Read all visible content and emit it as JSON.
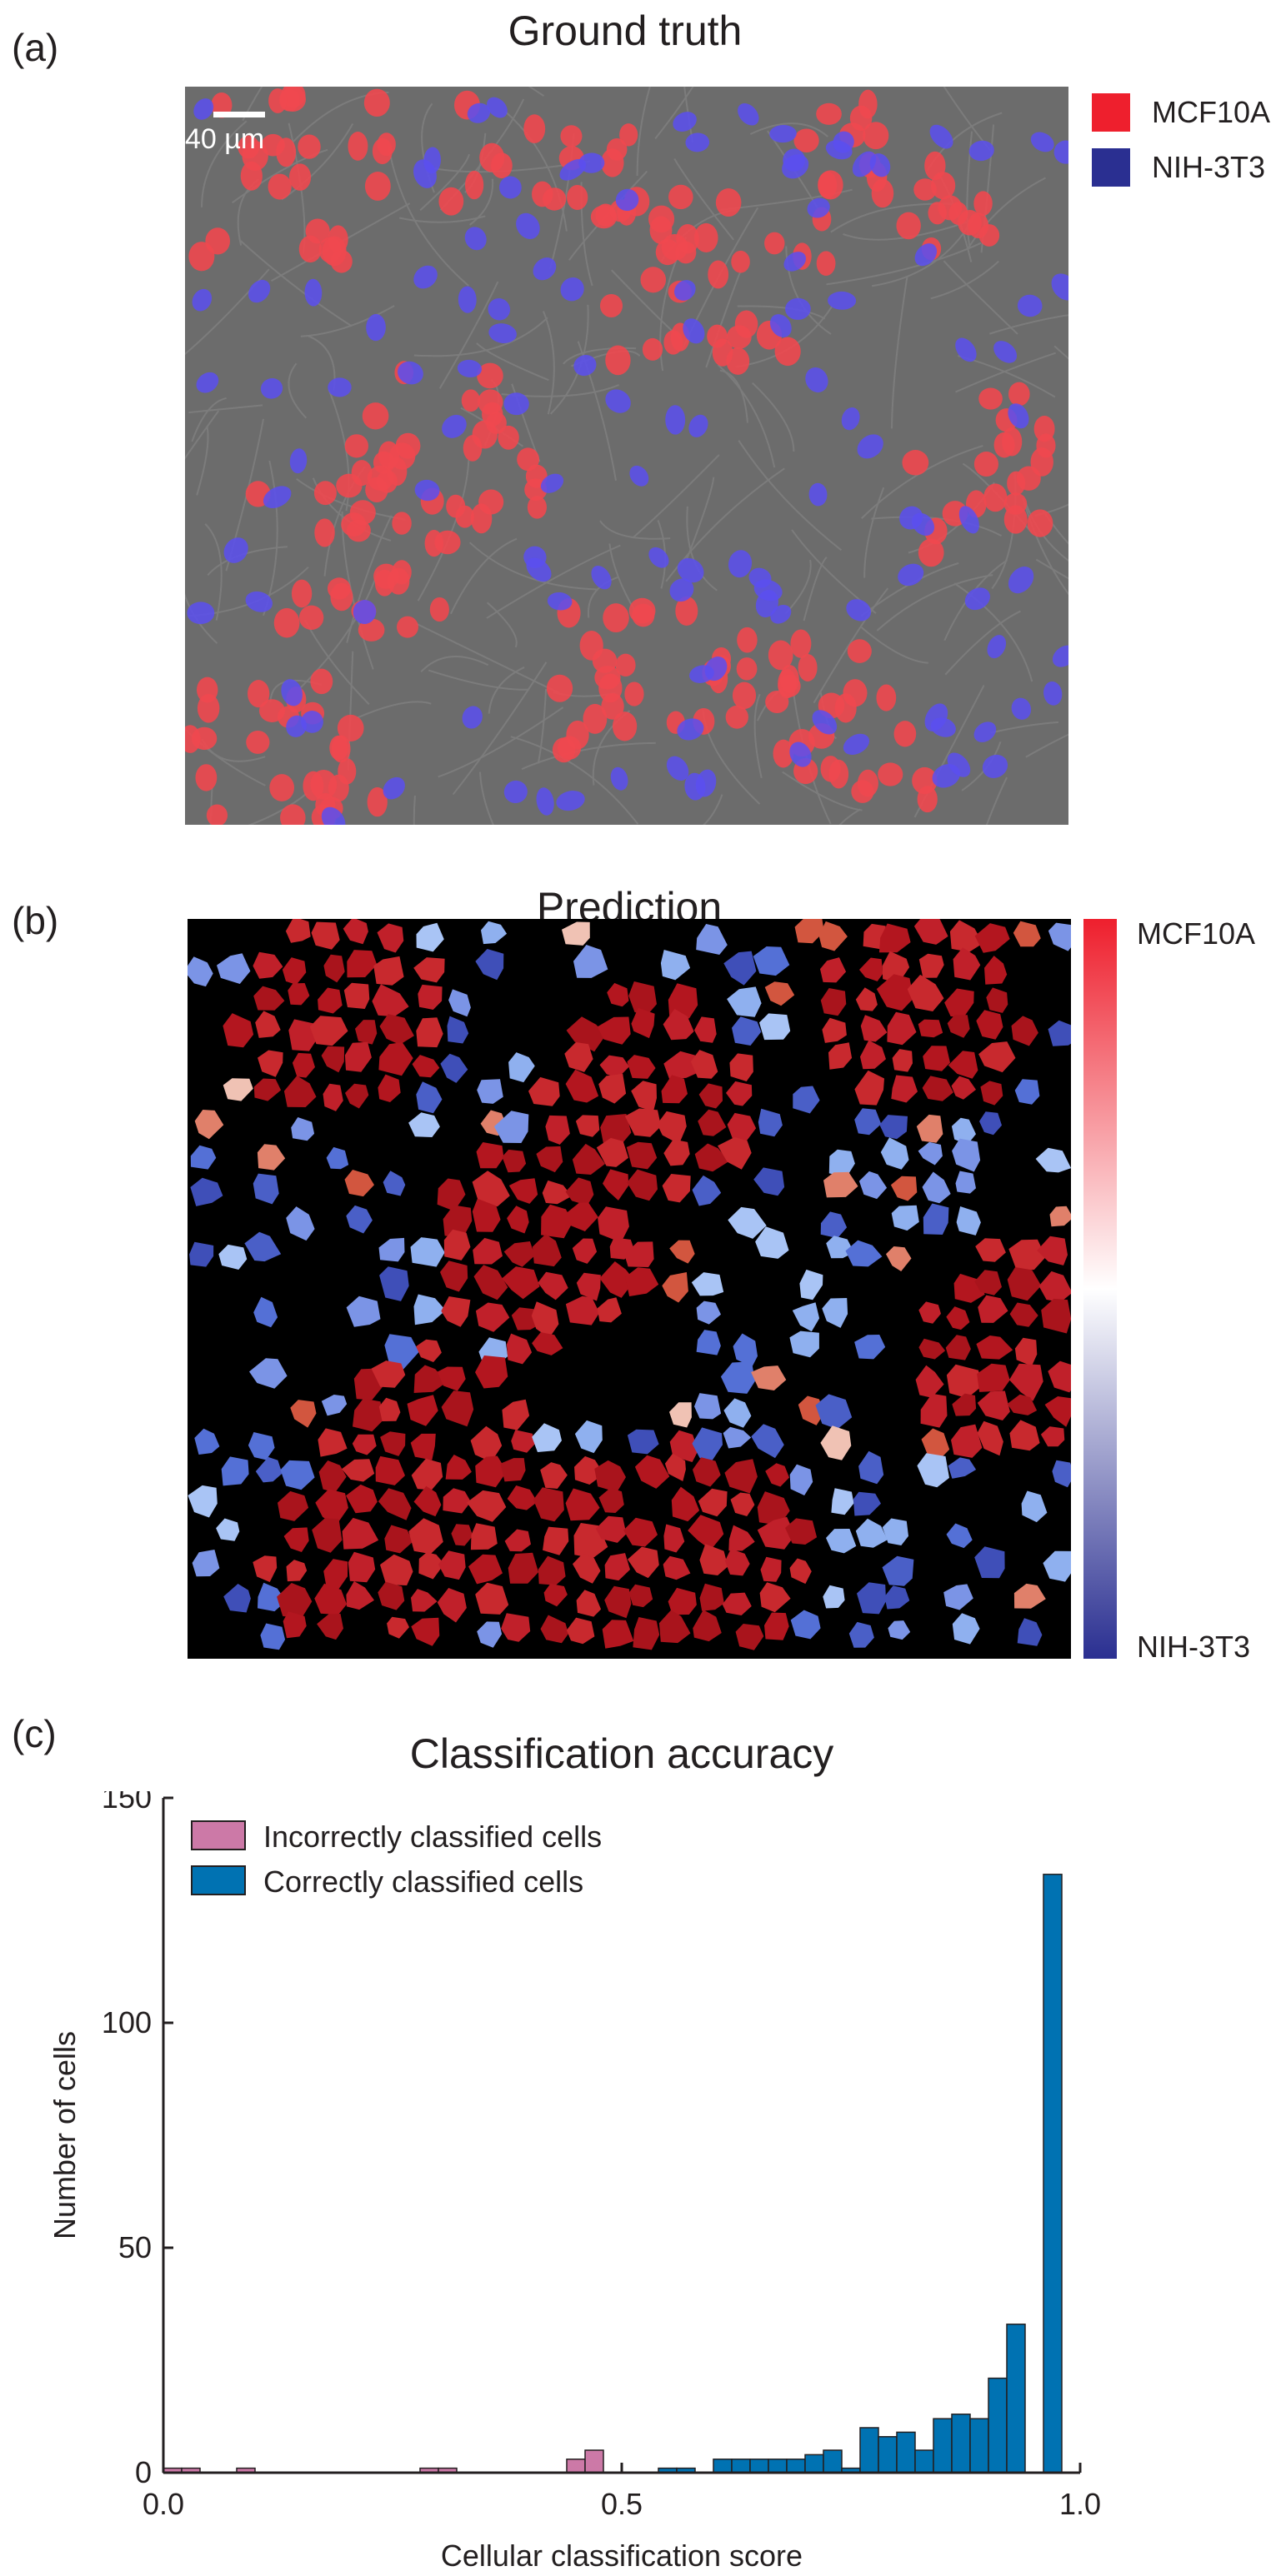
{
  "panel_a": {
    "label": "(a)",
    "title": "Ground truth",
    "scalebar_label": "40 µm",
    "legend": [
      {
        "label": "MCF10A",
        "color": "#ee1f2d"
      },
      {
        "label": "NIH-3T3",
        "color": "#2a2f91"
      }
    ]
  },
  "panel_b": {
    "label": "(b)",
    "title": "Prediction",
    "colorbar_top": "MCF10A",
    "colorbar_bottom": "NIH-3T3",
    "colorbar_colors": [
      "#2a2f91",
      "#ffffff",
      "#ee1f2d"
    ]
  },
  "panel_c": {
    "label": "(c)",
    "title": "Classification accuracy"
  },
  "chart_data": {
    "type": "bar",
    "title": "Classification accuracy",
    "xlabel": "Cellular classification score",
    "ylabel": "Number of cells",
    "xlim": [
      0.0,
      1.0
    ],
    "ylim": [
      0,
      150
    ],
    "xticks": [
      "0.0",
      "0.5",
      "1.0"
    ],
    "yticks": [
      "0",
      "50",
      "100",
      "150"
    ],
    "bin_width": 0.02,
    "grid": false,
    "legend_position": "top-left",
    "series": [
      {
        "name": "Incorrectly classified cells",
        "color": "#cc79a7",
        "bins": [
          {
            "x": 0.0,
            "value": 1
          },
          {
            "x": 0.02,
            "value": 1
          },
          {
            "x": 0.08,
            "value": 1
          },
          {
            "x": 0.28,
            "value": 1
          },
          {
            "x": 0.3,
            "value": 1
          },
          {
            "x": 0.44,
            "value": 3
          },
          {
            "x": 0.46,
            "value": 5
          }
        ]
      },
      {
        "name": "Correctly classified cells",
        "color": "#0072b2",
        "bins": [
          {
            "x": 0.54,
            "value": 1
          },
          {
            "x": 0.56,
            "value": 1
          },
          {
            "x": 0.6,
            "value": 3
          },
          {
            "x": 0.62,
            "value": 3
          },
          {
            "x": 0.64,
            "value": 3
          },
          {
            "x": 0.66,
            "value": 3
          },
          {
            "x": 0.68,
            "value": 3
          },
          {
            "x": 0.7,
            "value": 4
          },
          {
            "x": 0.72,
            "value": 5
          },
          {
            "x": 0.74,
            "value": 1
          },
          {
            "x": 0.76,
            "value": 10
          },
          {
            "x": 0.78,
            "value": 8
          },
          {
            "x": 0.8,
            "value": 9
          },
          {
            "x": 0.82,
            "value": 5
          },
          {
            "x": 0.84,
            "value": 12
          },
          {
            "x": 0.86,
            "value": 13
          },
          {
            "x": 0.88,
            "value": 12
          },
          {
            "x": 0.9,
            "value": 21
          },
          {
            "x": 0.92,
            "value": 33
          },
          {
            "x": 0.94,
            "value": 0
          },
          {
            "x": 0.96,
            "value": 133
          }
        ]
      }
    ]
  }
}
